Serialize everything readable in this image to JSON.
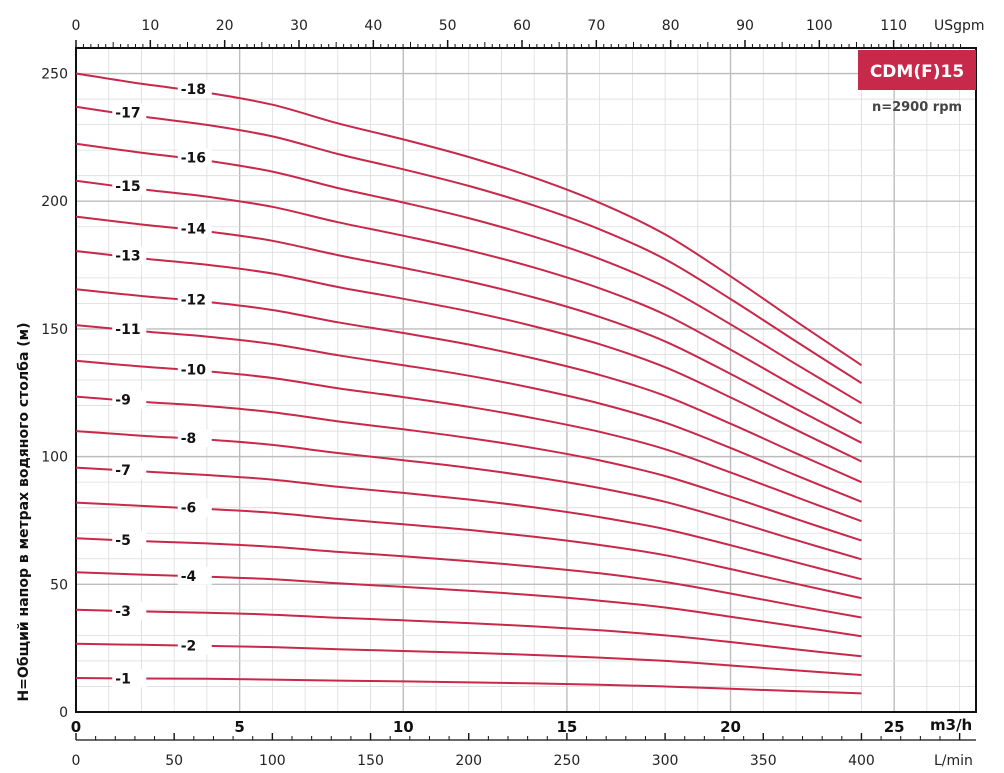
{
  "chart_data": {
    "type": "line",
    "title": "CDM(F)15",
    "subtitle": "n=2900 rpm",
    "ylabel": "H=Общий напор в метрах водяного столба (м)",
    "ylim": [
      0,
      260
    ],
    "y_ticks": [
      "0",
      "50",
      "100",
      "150",
      "200",
      "250"
    ],
    "x_axes": {
      "m3h": {
        "unit": "m3/h",
        "range": [
          0,
          27.5
        ],
        "ticks": [
          "0",
          "5",
          "10",
          "15",
          "20",
          "25"
        ]
      },
      "usgpm": {
        "unit": "USgpm",
        "ticks": [
          "0",
          "10",
          "20",
          "30",
          "40",
          "50",
          "60",
          "70",
          "80",
          "90",
          "100",
          "110"
        ]
      },
      "lmin": {
        "unit": "L/min",
        "ticks": [
          "0",
          "50",
          "100",
          "150",
          "200",
          "250",
          "300",
          "350",
          "400"
        ]
      }
    },
    "x": [
      0,
      2,
      4,
      6,
      8,
      10,
      12,
      14,
      16,
      18,
      20,
      22,
      24
    ],
    "series": [
      {
        "name": "-1",
        "label_x": 1.2,
        "values": [
          13.3,
          13.1,
          13.0,
          12.7,
          12.3,
          12.0,
          11.6,
          11.2,
          10.7,
          10.0,
          9.1,
          8.2,
          7.3
        ]
      },
      {
        "name": "-2",
        "label_x": 3.2,
        "values": [
          26.7,
          26.3,
          25.9,
          25.4,
          24.6,
          23.9,
          23.2,
          22.3,
          21.3,
          20.0,
          18.2,
          16.3,
          14.5
        ]
      },
      {
        "name": "-3",
        "label_x": 1.2,
        "values": [
          40.0,
          39.4,
          38.9,
          38.1,
          36.9,
          35.9,
          34.8,
          33.5,
          32.0,
          30.0,
          27.4,
          24.5,
          21.8
        ]
      },
      {
        "name": "-4",
        "label_x": 3.2,
        "values": [
          54.7,
          53.8,
          53.0,
          52.0,
          50.4,
          49.0,
          47.5,
          45.7,
          43.6,
          40.9,
          37.3,
          33.5,
          29.7
        ]
      },
      {
        "name": "-5",
        "label_x": 1.2,
        "values": [
          68.0,
          66.9,
          66.0,
          64.7,
          62.7,
          61.0,
          59.1,
          56.9,
          54.3,
          50.9,
          46.4,
          41.6,
          37.0
        ]
      },
      {
        "name": "-6",
        "label_x": 3.2,
        "values": [
          82.0,
          80.7,
          79.5,
          78.0,
          75.6,
          73.5,
          71.3,
          68.6,
          65.4,
          61.4,
          56.0,
          50.2,
          44.6
        ]
      },
      {
        "name": "-7",
        "label_x": 1.2,
        "values": [
          95.7,
          94.2,
          92.8,
          91.0,
          88.2,
          85.8,
          83.2,
          80.1,
          76.3,
          71.6,
          65.3,
          58.6,
          52.0
        ]
      },
      {
        "name": "-8",
        "label_x": 3.2,
        "values": [
          110.0,
          108.2,
          106.7,
          104.6,
          101.4,
          98.6,
          95.6,
          92.0,
          87.7,
          82.3,
          75.1,
          67.3,
          59.8
        ]
      },
      {
        "name": "-9",
        "label_x": 1.2,
        "values": [
          123.5,
          121.5,
          119.8,
          117.4,
          113.8,
          110.7,
          107.3,
          103.3,
          98.5,
          92.4,
          84.3,
          75.6,
          67.1
        ]
      },
      {
        "name": "-10",
        "label_x": 3.2,
        "values": [
          137.5,
          135.3,
          133.4,
          130.8,
          126.8,
          123.3,
          119.5,
          115.0,
          109.7,
          102.9,
          93.8,
          84.2,
          74.7
        ]
      },
      {
        "name": "-11",
        "label_x": 1.2,
        "values": [
          151.5,
          149.1,
          147.0,
          144.1,
          139.7,
          135.8,
          131.7,
          126.7,
          120.8,
          113.3,
          103.4,
          92.7,
          82.3
        ]
      },
      {
        "name": "-12",
        "label_x": 3.2,
        "values": [
          165.5,
          162.9,
          160.6,
          157.4,
          152.6,
          148.4,
          143.9,
          138.4,
          132.0,
          123.8,
          112.9,
          101.3,
          90.0
        ]
      },
      {
        "name": "-13",
        "label_x": 1.2,
        "values": [
          180.5,
          177.6,
          175.1,
          171.7,
          166.4,
          161.8,
          156.9,
          151.0,
          144.0,
          135.0,
          123.2,
          110.5,
          98.1
        ]
      },
      {
        "name": "-14",
        "label_x": 3.2,
        "values": [
          194.0,
          190.9,
          188.2,
          184.5,
          178.9,
          173.9,
          168.6,
          162.3,
          154.7,
          145.1,
          132.4,
          118.7,
          105.4
        ]
      },
      {
        "name": "-15",
        "label_x": 1.2,
        "values": [
          208.0,
          204.7,
          201.8,
          197.8,
          191.8,
          186.5,
          180.8,
          174.0,
          165.9,
          155.6,
          141.9,
          127.3,
          113.0
        ]
      },
      {
        "name": "-16",
        "label_x": 3.2,
        "values": [
          222.5,
          219.0,
          215.9,
          211.6,
          205.2,
          199.5,
          193.4,
          186.1,
          177.4,
          166.4,
          151.8,
          136.2,
          120.9
        ]
      },
      {
        "name": "-17",
        "label_x": 1.2,
        "values": [
          237.0,
          233.2,
          229.9,
          225.4,
          218.5,
          212.5,
          206.0,
          198.3,
          189.0,
          177.3,
          161.7,
          145.1,
          128.8
        ]
      },
      {
        "name": "-18",
        "label_x": 3.2,
        "values": [
          250.0,
          246.0,
          242.5,
          237.8,
          230.5,
          224.2,
          217.3,
          209.2,
          199.4,
          187.0,
          170.6,
          153.0,
          135.8
        ]
      }
    ],
    "colors": {
      "curve": "#c8284a",
      "title_box": "#c8284a",
      "grid_minor": "#dcdcdc",
      "grid_major": "#bdbdbd"
    },
    "grid": true
  }
}
